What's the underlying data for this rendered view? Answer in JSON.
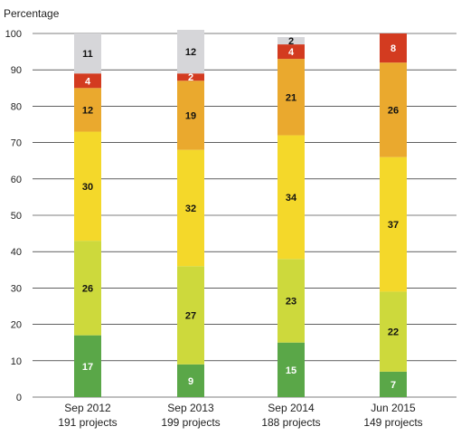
{
  "chart_data": {
    "type": "bar",
    "stacked": true,
    "ylabel": "Percentage",
    "ylim": [
      0,
      100
    ],
    "yticks": [
      0,
      10,
      20,
      30,
      40,
      50,
      60,
      70,
      80,
      90,
      100
    ],
    "grid": true,
    "categories": [
      {
        "date": "Sep 2012",
        "projects": "191 projects"
      },
      {
        "date": "Sep 2013",
        "projects": "199 projects"
      },
      {
        "date": "Sep 2014",
        "projects": "188 projects"
      },
      {
        "date": "Jun 2015",
        "projects": "149 projects"
      }
    ],
    "series": [
      {
        "color": "#5aa748",
        "label_color": "#ffffff",
        "values": [
          17,
          9,
          15,
          7
        ]
      },
      {
        "color": "#cdd93c",
        "label_color": "#111111",
        "values": [
          26,
          27,
          23,
          22
        ]
      },
      {
        "color": "#f4d82a",
        "label_color": "#111111",
        "values": [
          30,
          32,
          34,
          37
        ]
      },
      {
        "color": "#eaa92e",
        "label_color": "#111111",
        "values": [
          12,
          19,
          21,
          26
        ]
      },
      {
        "color": "#d33b20",
        "label_color": "#ffffff",
        "values": [
          4,
          2,
          4,
          8
        ]
      },
      {
        "color": "#d6d6d9",
        "label_color": "#111111",
        "values": [
          11,
          12,
          2,
          0
        ]
      }
    ]
  }
}
